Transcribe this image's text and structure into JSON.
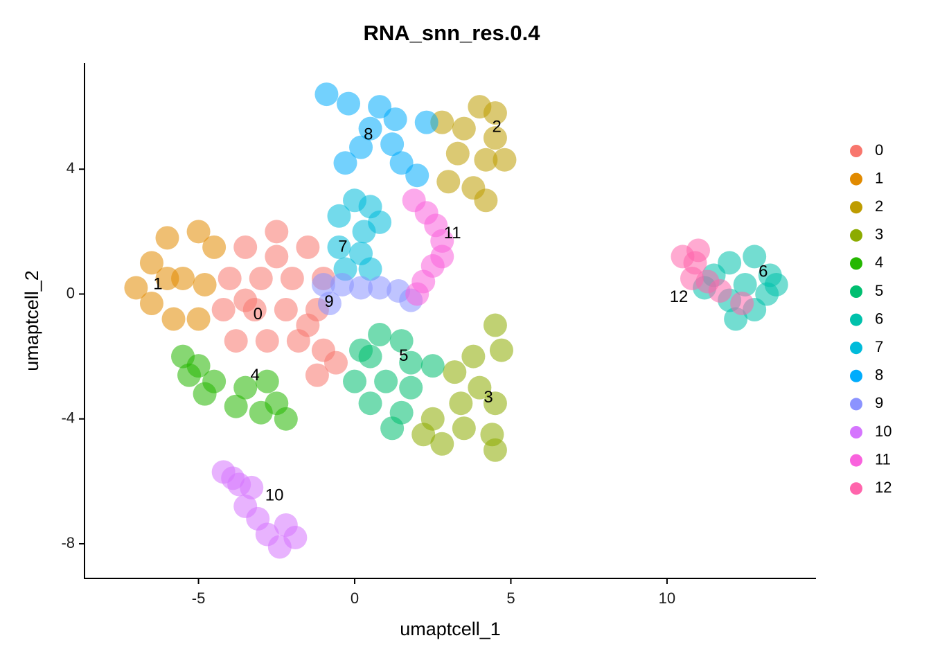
{
  "chart_data": {
    "type": "scatter",
    "title": "RNA_snn_res.0.4",
    "x_label": "umaptcell_1",
    "y_label": "umaptcell_2",
    "xlim": [
      -8.65,
      14.77
    ],
    "ylim": [
      -9.11,
      7.4
    ],
    "xticks": [
      -5,
      0,
      5,
      10
    ],
    "yticks": [
      -8,
      -4,
      0,
      4
    ],
    "grid": false,
    "legend": "right",
    "series": [
      {
        "name": "0",
        "color": "#F8766D",
        "x": [
          -3.5,
          -2.5,
          -1.5,
          -4,
          -3,
          -2,
          -1,
          -4.2,
          -3.2,
          -2.2,
          -1.2,
          -3.8,
          -2.8,
          -1.8,
          -1,
          -1.2,
          -0.6,
          -2.5,
          -3.5,
          -1.5
        ],
        "y": [
          1.5,
          2,
          1.5,
          0.5,
          0.5,
          0.5,
          0.5,
          -0.5,
          -0.5,
          -0.5,
          -0.5,
          -1.5,
          -1.5,
          -1.5,
          -1.8,
          -2.6,
          -2.2,
          1.2,
          -0.2,
          -1
        ]
      },
      {
        "name": "1",
        "color": "#E18A00",
        "x": [
          -7,
          -6.5,
          -6,
          -5,
          -4.5,
          -6.5,
          -5.5,
          -4.8,
          -5.8,
          -5,
          -6
        ],
        "y": [
          0.2,
          1,
          1.8,
          2,
          1.5,
          -0.3,
          0.5,
          0.3,
          -0.8,
          -0.8,
          0.5
        ]
      },
      {
        "name": "2",
        "color": "#BE9C00",
        "x": [
          4,
          4.5,
          3.5,
          4.5,
          3.3,
          4.2,
          4.8,
          3,
          3.8,
          4.2,
          2.8
        ],
        "y": [
          6,
          5.8,
          5.3,
          5,
          4.5,
          4.3,
          4.3,
          3.6,
          3.4,
          3,
          5.5
        ]
      },
      {
        "name": "3",
        "color": "#8CAB00",
        "x": [
          4.5,
          4.7,
          3.8,
          4,
          3.4,
          4.5,
          2.5,
          3.5,
          4.4,
          2.8,
          4.5,
          2.2,
          3.2
        ],
        "y": [
          -1,
          -1.8,
          -2,
          -3,
          -3.5,
          -3.5,
          -4,
          -4.3,
          -4.5,
          -4.8,
          -5,
          -4.5,
          -2.5
        ]
      },
      {
        "name": "4",
        "color": "#24B700",
        "x": [
          -5.5,
          -5,
          -4.5,
          -3.5,
          -2.8,
          -3.8,
          -3,
          -2.5,
          -4.8,
          -2.2,
          -5.3
        ],
        "y": [
          -2,
          -2.3,
          -2.8,
          -3,
          -2.8,
          -3.6,
          -3.8,
          -3.5,
          -3.2,
          -4,
          -2.6
        ]
      },
      {
        "name": "5",
        "color": "#00BE70",
        "x": [
          0.8,
          1.5,
          0.5,
          1.8,
          2.5,
          0,
          1,
          1.8,
          0.5,
          1.5,
          1.2,
          0.2
        ],
        "y": [
          -1.3,
          -1.5,
          -2,
          -2.2,
          -2.3,
          -2.8,
          -2.8,
          -3,
          -3.5,
          -3.8,
          -4.3,
          -1.8
        ]
      },
      {
        "name": "6",
        "color": "#00C1AB",
        "x": [
          12,
          12.8,
          13.3,
          11.5,
          12.5,
          13.2,
          12,
          12.8,
          12.2,
          11.2,
          13.5
        ],
        "y": [
          1,
          1.2,
          0.6,
          0.6,
          0.3,
          0,
          -0.2,
          -0.5,
          -0.8,
          0.2,
          0.3
        ]
      },
      {
        "name": "7",
        "color": "#00BBDA",
        "x": [
          0,
          0.5,
          -0.5,
          0.3,
          0.8,
          -0.5,
          0.2,
          -0.3,
          0.5
        ],
        "y": [
          3,
          2.8,
          2.5,
          2,
          2.3,
          1.5,
          1.3,
          0.8,
          0.8
        ]
      },
      {
        "name": "8",
        "color": "#00ACFC",
        "x": [
          -0.9,
          -0.2,
          0.8,
          1.3,
          0.5,
          1.2,
          0.2,
          1.5,
          2,
          -0.3,
          2.3
        ],
        "y": [
          6.4,
          6.1,
          6,
          5.6,
          5.3,
          4.8,
          4.7,
          4.2,
          3.8,
          4.2,
          5.5
        ]
      },
      {
        "name": "9",
        "color": "#8B93FF",
        "x": [
          -1,
          -0.4,
          0.2,
          0.8,
          1.4,
          1.8,
          -0.8
        ],
        "y": [
          0.3,
          0.3,
          0.2,
          0.2,
          0.1,
          -0.2,
          -0.3
        ]
      },
      {
        "name": "10",
        "color": "#D575FE",
        "x": [
          -4.2,
          -3.7,
          -3.5,
          -3.1,
          -2.8,
          -2.4,
          -1.9,
          -2.2,
          -3.3,
          -3.9
        ],
        "y": [
          -5.7,
          -6.1,
          -6.8,
          -7.2,
          -7.7,
          -8.1,
          -7.8,
          -7.4,
          -6.2,
          -5.9
        ]
      },
      {
        "name": "11",
        "color": "#F962DD",
        "x": [
          1.9,
          2.3,
          2.6,
          2.8,
          2.8,
          2.5,
          2.2,
          2
        ],
        "y": [
          3,
          2.6,
          2.2,
          1.7,
          1.2,
          0.9,
          0.4,
          0
        ]
      },
      {
        "name": "12",
        "color": "#FF65AC",
        "x": [
          10.5,
          10.9,
          11.3,
          10.8,
          11.7,
          12.4,
          11
        ],
        "y": [
          1.2,
          1,
          0.4,
          0.5,
          0.1,
          -0.3,
          1.4
        ]
      }
    ],
    "annotations": [
      {
        "text": "0",
        "x": -3.1,
        "y": -0.67
      },
      {
        "text": "1",
        "x": -6.3,
        "y": 0.29
      },
      {
        "text": "2",
        "x": 4.55,
        "y": 5.33
      },
      {
        "text": "3",
        "x": 4.28,
        "y": -3.33
      },
      {
        "text": "4",
        "x": -3.19,
        "y": -2.62
      },
      {
        "text": "5",
        "x": 1.57,
        "y": -2.0
      },
      {
        "text": "6",
        "x": 13.08,
        "y": 0.69
      },
      {
        "text": "7",
        "x": -0.38,
        "y": 1.49
      },
      {
        "text": "8",
        "x": 0.44,
        "y": 5.09
      },
      {
        "text": "9",
        "x": -0.82,
        "y": -0.27
      },
      {
        "text": "10",
        "x": -2.57,
        "y": -6.47
      },
      {
        "text": "11",
        "x": 3.13,
        "y": 1.93
      },
      {
        "text": "12",
        "x": 10.38,
        "y": -0.11
      }
    ]
  }
}
